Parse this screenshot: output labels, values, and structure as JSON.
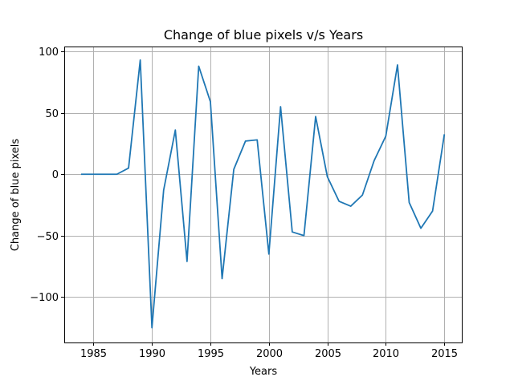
{
  "chart_data": {
    "type": "line",
    "title": "Change of blue pixels v/s Years",
    "xlabel": "Years",
    "ylabel": "Change of blue pixels",
    "xlim": [
      1982.5,
      2016.5
    ],
    "ylim": [
      -137,
      104
    ],
    "xticks": [
      1985,
      1990,
      1995,
      2000,
      2005,
      2010,
      2015
    ],
    "yticks": [
      100,
      50,
      0,
      -50,
      -100
    ],
    "ytick_labels": [
      "100",
      "50",
      "0",
      "−50",
      "−100"
    ],
    "grid": true,
    "series": [
      {
        "color": "#1f77b4",
        "x": [
          1984,
          1985,
          1986,
          1987,
          1988,
          1989,
          1990,
          1991,
          1992,
          1993,
          1994,
          1995,
          1996,
          1997,
          1998,
          1999,
          2000,
          2001,
          2002,
          2003,
          2004,
          2005,
          2006,
          2007,
          2008,
          2009,
          2010,
          2011,
          2012,
          2013,
          2014,
          2015
        ],
        "y": [
          0,
          0,
          0,
          0,
          5,
          93,
          -125,
          -13,
          36,
          -71,
          88,
          59,
          -85,
          4,
          27,
          28,
          -65,
          55,
          -47,
          -50,
          47,
          -2,
          -22,
          -26,
          -17,
          11,
          31,
          89,
          -23,
          -44,
          -30,
          32
        ]
      }
    ]
  }
}
